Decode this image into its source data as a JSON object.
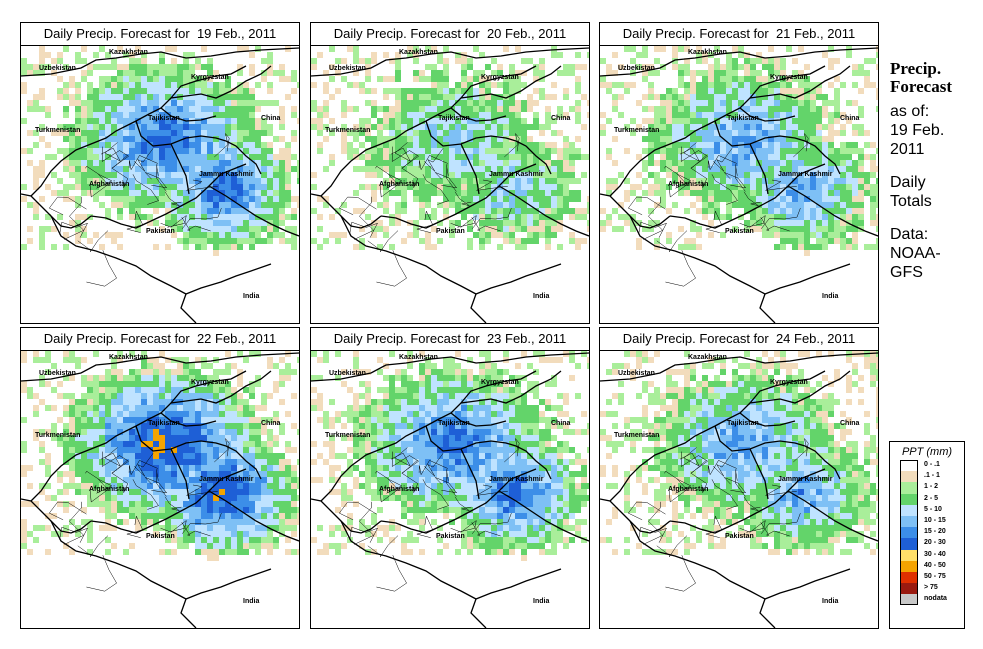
{
  "panels": [
    {
      "title": "Daily Precip. Forecast for  19 Feb., 2011",
      "intensity": 3
    },
    {
      "title": "Daily Precip. Forecast for  20 Feb., 2011",
      "intensity": 1
    },
    {
      "title": "Daily Precip. Forecast for  21 Feb., 2011",
      "intensity": 2
    },
    {
      "title": "Daily Precip. Forecast for  22 Feb., 2011",
      "intensity": 4
    },
    {
      "title": "Daily Precip. Forecast for  23 Feb., 2011",
      "intensity": 3
    },
    {
      "title": "Daily Precip. Forecast for  24 Feb., 2011",
      "intensity": 2
    }
  ],
  "map_labels": {
    "kazakhstan": "Kazakhstan",
    "uzbekistan": "Uzbekistan",
    "kyrgyzstan": "Kyrgyzstan",
    "china": "China",
    "turkmenistan": "Turkmenistan",
    "tajikistan": "Tajikistan",
    "afghanistan": "Afghanistan",
    "jammu_kashmir": "Jammu Kashmir",
    "pakistan": "Pakistan",
    "india": "India"
  },
  "side": {
    "title_line1": "Precip.",
    "title_line2": "Forecast",
    "asof_line1": "as of:",
    "asof_line2": "19 Feb.",
    "asof_line3": "2011",
    "daily_line1": "Daily",
    "daily_line2": "Totals",
    "data_line1": "Data:",
    "data_line2": "NOAA-",
    "data_line3": "GFS"
  },
  "legend": {
    "title": "PPT (mm)",
    "items": [
      {
        "label": "0 - .1",
        "color": "#ffffff"
      },
      {
        "label": ".1 - 1",
        "color": "#f2dcbc"
      },
      {
        "label": "1 - 2",
        "color": "#a9ee9a"
      },
      {
        "label": "2 - 5",
        "color": "#63d46a"
      },
      {
        "label": "5 - 10",
        "color": "#bfe3ff"
      },
      {
        "label": "10 - 15",
        "color": "#7ec0f5"
      },
      {
        "label": "15 - 20",
        "color": "#3c8ee8"
      },
      {
        "label": "20 - 30",
        "color": "#1e5fd6"
      },
      {
        "label": "30 - 40",
        "color": "#ffe06a"
      },
      {
        "label": "40 - 50",
        "color": "#f5a400"
      },
      {
        "label": "50 - 75",
        "color": "#e03000"
      },
      {
        "label": "> 75",
        "color": "#9a1a10"
      },
      {
        "label": "nodata",
        "color": "#c8c8c8"
      }
    ]
  }
}
